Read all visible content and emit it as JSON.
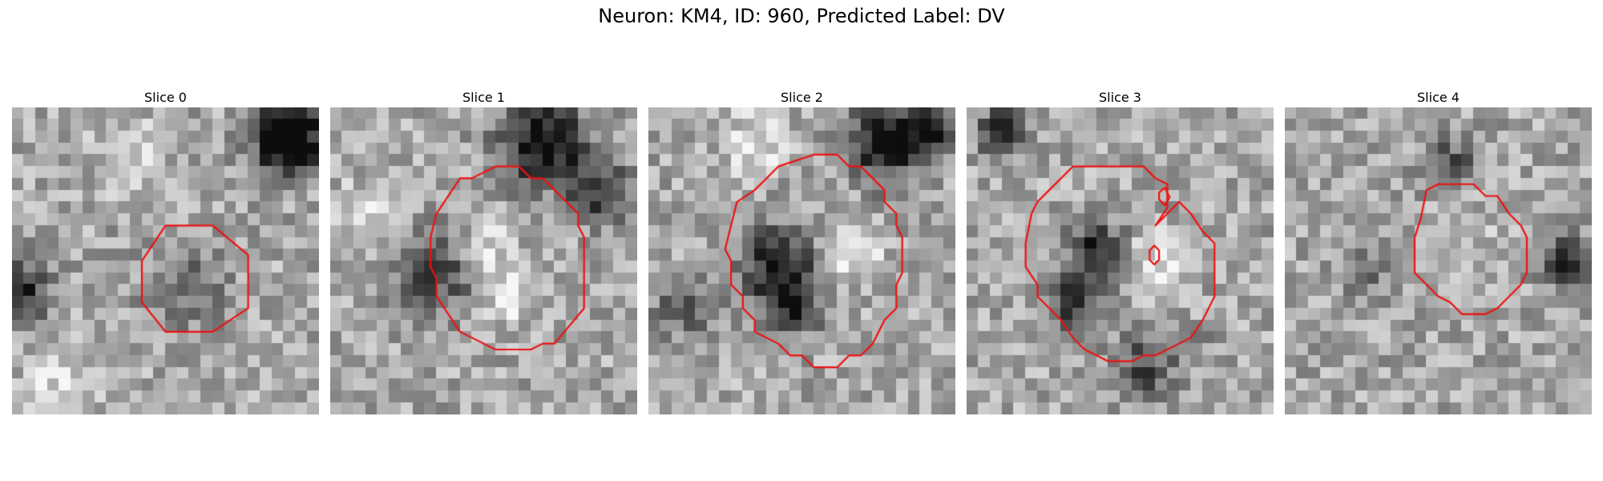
{
  "figure": {
    "title": "Neuron: KM4, ID: 960, Predicted Label: DV"
  },
  "panels": [
    {
      "title": "Slice 0"
    },
    {
      "title": "Slice 1"
    },
    {
      "title": "Slice 2"
    },
    {
      "title": "Slice 3"
    },
    {
      "title": "Slice 4"
    }
  ],
  "colors": {
    "contour": "#ee1111",
    "background": "#ffffff"
  }
}
